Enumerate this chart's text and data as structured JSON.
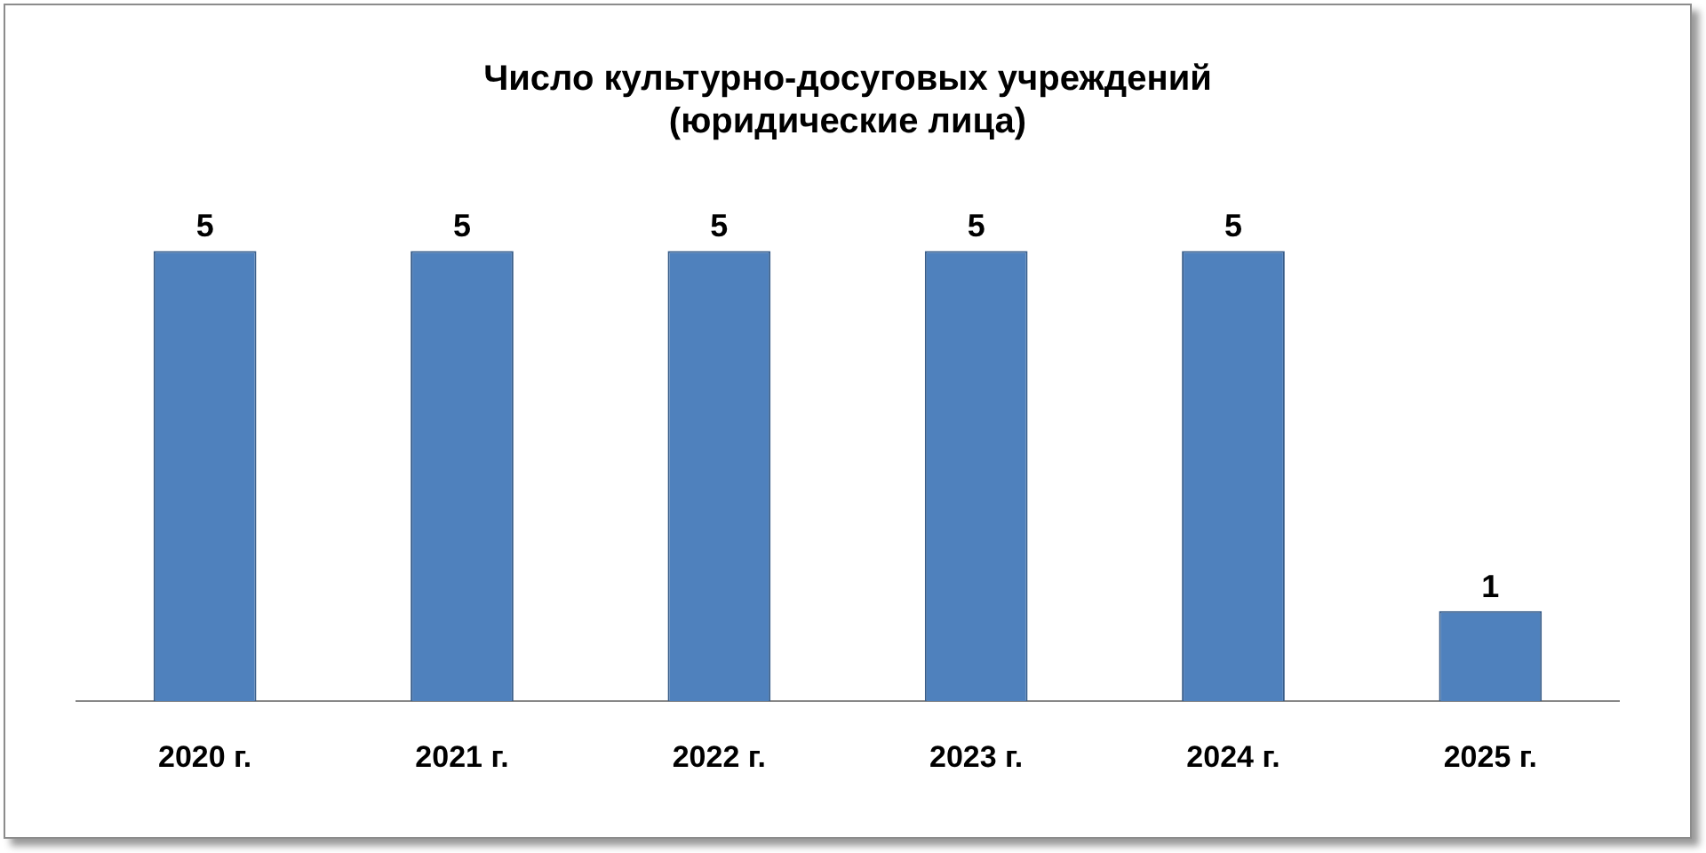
{
  "chart_data": {
    "type": "bar",
    "title": "Число культурно-досуговых учреждений\n(юридические лица)",
    "categories": [
      "2020 г.",
      "2021 г.",
      "2022 г.",
      "2023 г.",
      "2024 г.",
      "2025 г."
    ],
    "values": [
      5,
      5,
      5,
      5,
      5,
      1
    ],
    "color": "#4f81bd",
    "data_labels": true,
    "grid": false,
    "legend": false
  }
}
